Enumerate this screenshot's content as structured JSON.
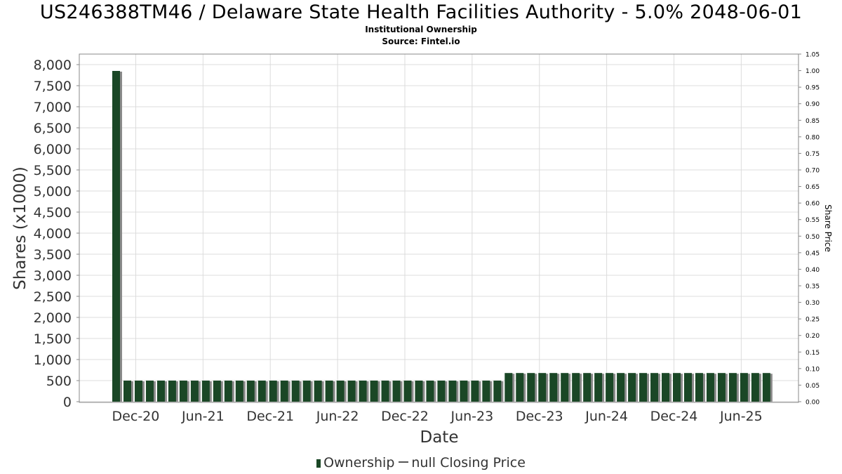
{
  "header": {
    "title": "US246388TM46 / Delaware State Health Facilities Authority - 5.0% 2048-06-01",
    "subtitle": "Institutional Ownership",
    "source": "Source: Fintel.io"
  },
  "legend": {
    "ownership_label": "Ownership",
    "price_label": "null Closing Price"
  },
  "colors": {
    "bar": "#1a4726",
    "bar_shadow": "#8a8a8a",
    "grid": "#dcdcdc",
    "frame": "#888888"
  },
  "chart_data": {
    "type": "bar",
    "xlabel": "Date",
    "ylabel": "Shares (x1000)",
    "y2label": "Share Price",
    "ylim": [
      0,
      8000
    ],
    "y2lim": [
      0,
      1.05
    ],
    "grid": true,
    "legend_position": "bottom",
    "y_ticks": [
      "0",
      "500",
      "1,000",
      "1,500",
      "2,000",
      "2,500",
      "3,000",
      "3,500",
      "4,000",
      "4,500",
      "5,000",
      "5,500",
      "6,000",
      "6,500",
      "7,000",
      "7,500",
      "8,000"
    ],
    "y2_ticks": [
      "0.00",
      "0.05",
      "0.10",
      "0.15",
      "0.20",
      "0.25",
      "0.30",
      "0.35",
      "0.40",
      "0.45",
      "0.50",
      "0.55",
      "0.60",
      "0.65",
      "0.70",
      "0.75",
      "0.80",
      "0.85",
      "0.90",
      "0.95",
      "1.00",
      "1.05"
    ],
    "x_ticks": [
      "Dec-20",
      "Jun-21",
      "Dec-21",
      "Jun-22",
      "Dec-22",
      "Jun-23",
      "Dec-23",
      "Jun-24",
      "Dec-24",
      "Jun-25"
    ],
    "series": [
      {
        "name": "Ownership",
        "values": [
          7850,
          500,
          500,
          500,
          500,
          500,
          500,
          500,
          500,
          500,
          500,
          500,
          500,
          500,
          500,
          500,
          500,
          500,
          500,
          500,
          500,
          500,
          500,
          500,
          500,
          500,
          500,
          500,
          500,
          500,
          500,
          500,
          500,
          500,
          500,
          680,
          680,
          680,
          680,
          680,
          680,
          680,
          680,
          680,
          680,
          680,
          680,
          680,
          680,
          680,
          680,
          680,
          680,
          680,
          680,
          680,
          680,
          680,
          680
        ]
      }
    ]
  }
}
